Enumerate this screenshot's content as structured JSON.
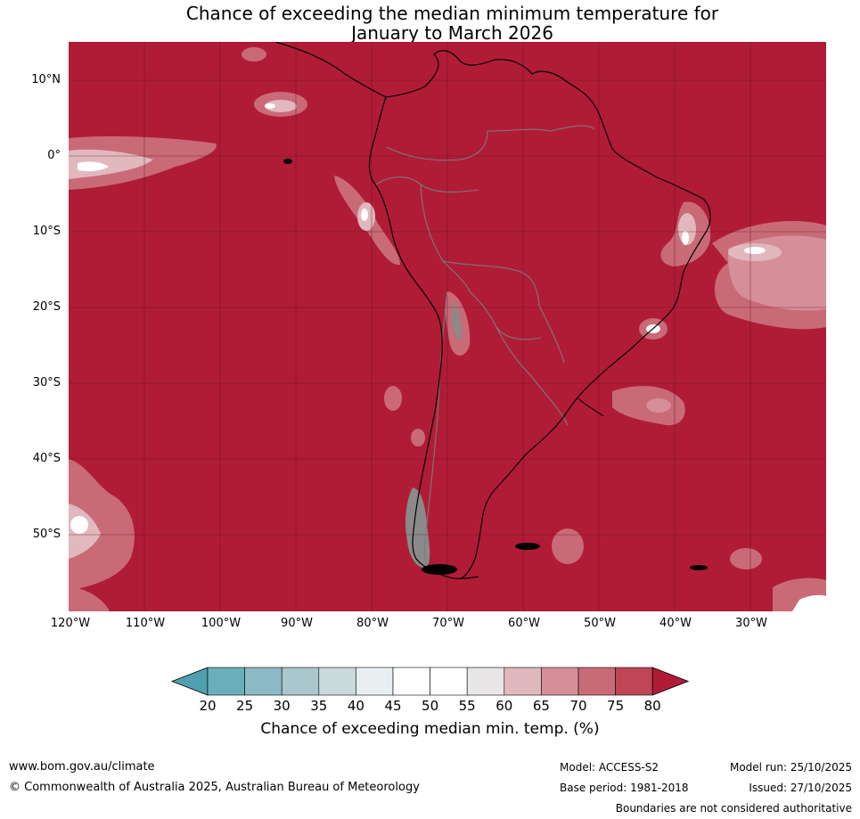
{
  "title_line1": "Chance of exceeding the median minimum temperature for",
  "title_line2": "January to March 2026",
  "lat_labels": [
    "10°N",
    "0°",
    "10°S",
    "20°S",
    "30°S",
    "40°S",
    "50°S"
  ],
  "lon_labels": [
    "120°W",
    "110°W",
    "100°W",
    "90°W",
    "80°W",
    "70°W",
    "60°W",
    "50°W",
    "40°W",
    "30°W"
  ],
  "colorbar": {
    "ticks": [
      "20",
      "25",
      "30",
      "35",
      "40",
      "45",
      "50",
      "55",
      "60",
      "65",
      "70",
      "75",
      "80"
    ],
    "colors": [
      "#4f9fae",
      "#6aaebb",
      "#8bbac6",
      "#a9c7cd",
      "#c9d9dc",
      "#e9eff1",
      "#ffffff",
      "#ffffff",
      "#e8e6e7",
      "#e0b8bd",
      "#d68f98",
      "#c96a77",
      "#bf4557",
      "#b01c36"
    ],
    "label": "Chance of exceeding median min. temp. (%)"
  },
  "map_colors": {
    "dominant": "#b01c36",
    "level_75": "#bf4557",
    "level_70": "#c96a77",
    "level_65": "#d68f98",
    "level_60": "#e0b8bd",
    "level_55": "#e8e6e7",
    "land_gray": "#8a8a8a",
    "coast": "#000000",
    "border": "#7a7a7a"
  },
  "footer": {
    "website": "www.bom.gov.au/climate",
    "copyright": "© Commonwealth of Australia 2025, Australian Bureau of Meteorology",
    "model": "Model: ACCESS-S2",
    "base_period": "Base period: 1981-2018",
    "model_run": "Model run: 25/10/2025",
    "issued": "Issued: 27/10/2025",
    "disclaimer": "Boundaries are not considered authoritative"
  }
}
